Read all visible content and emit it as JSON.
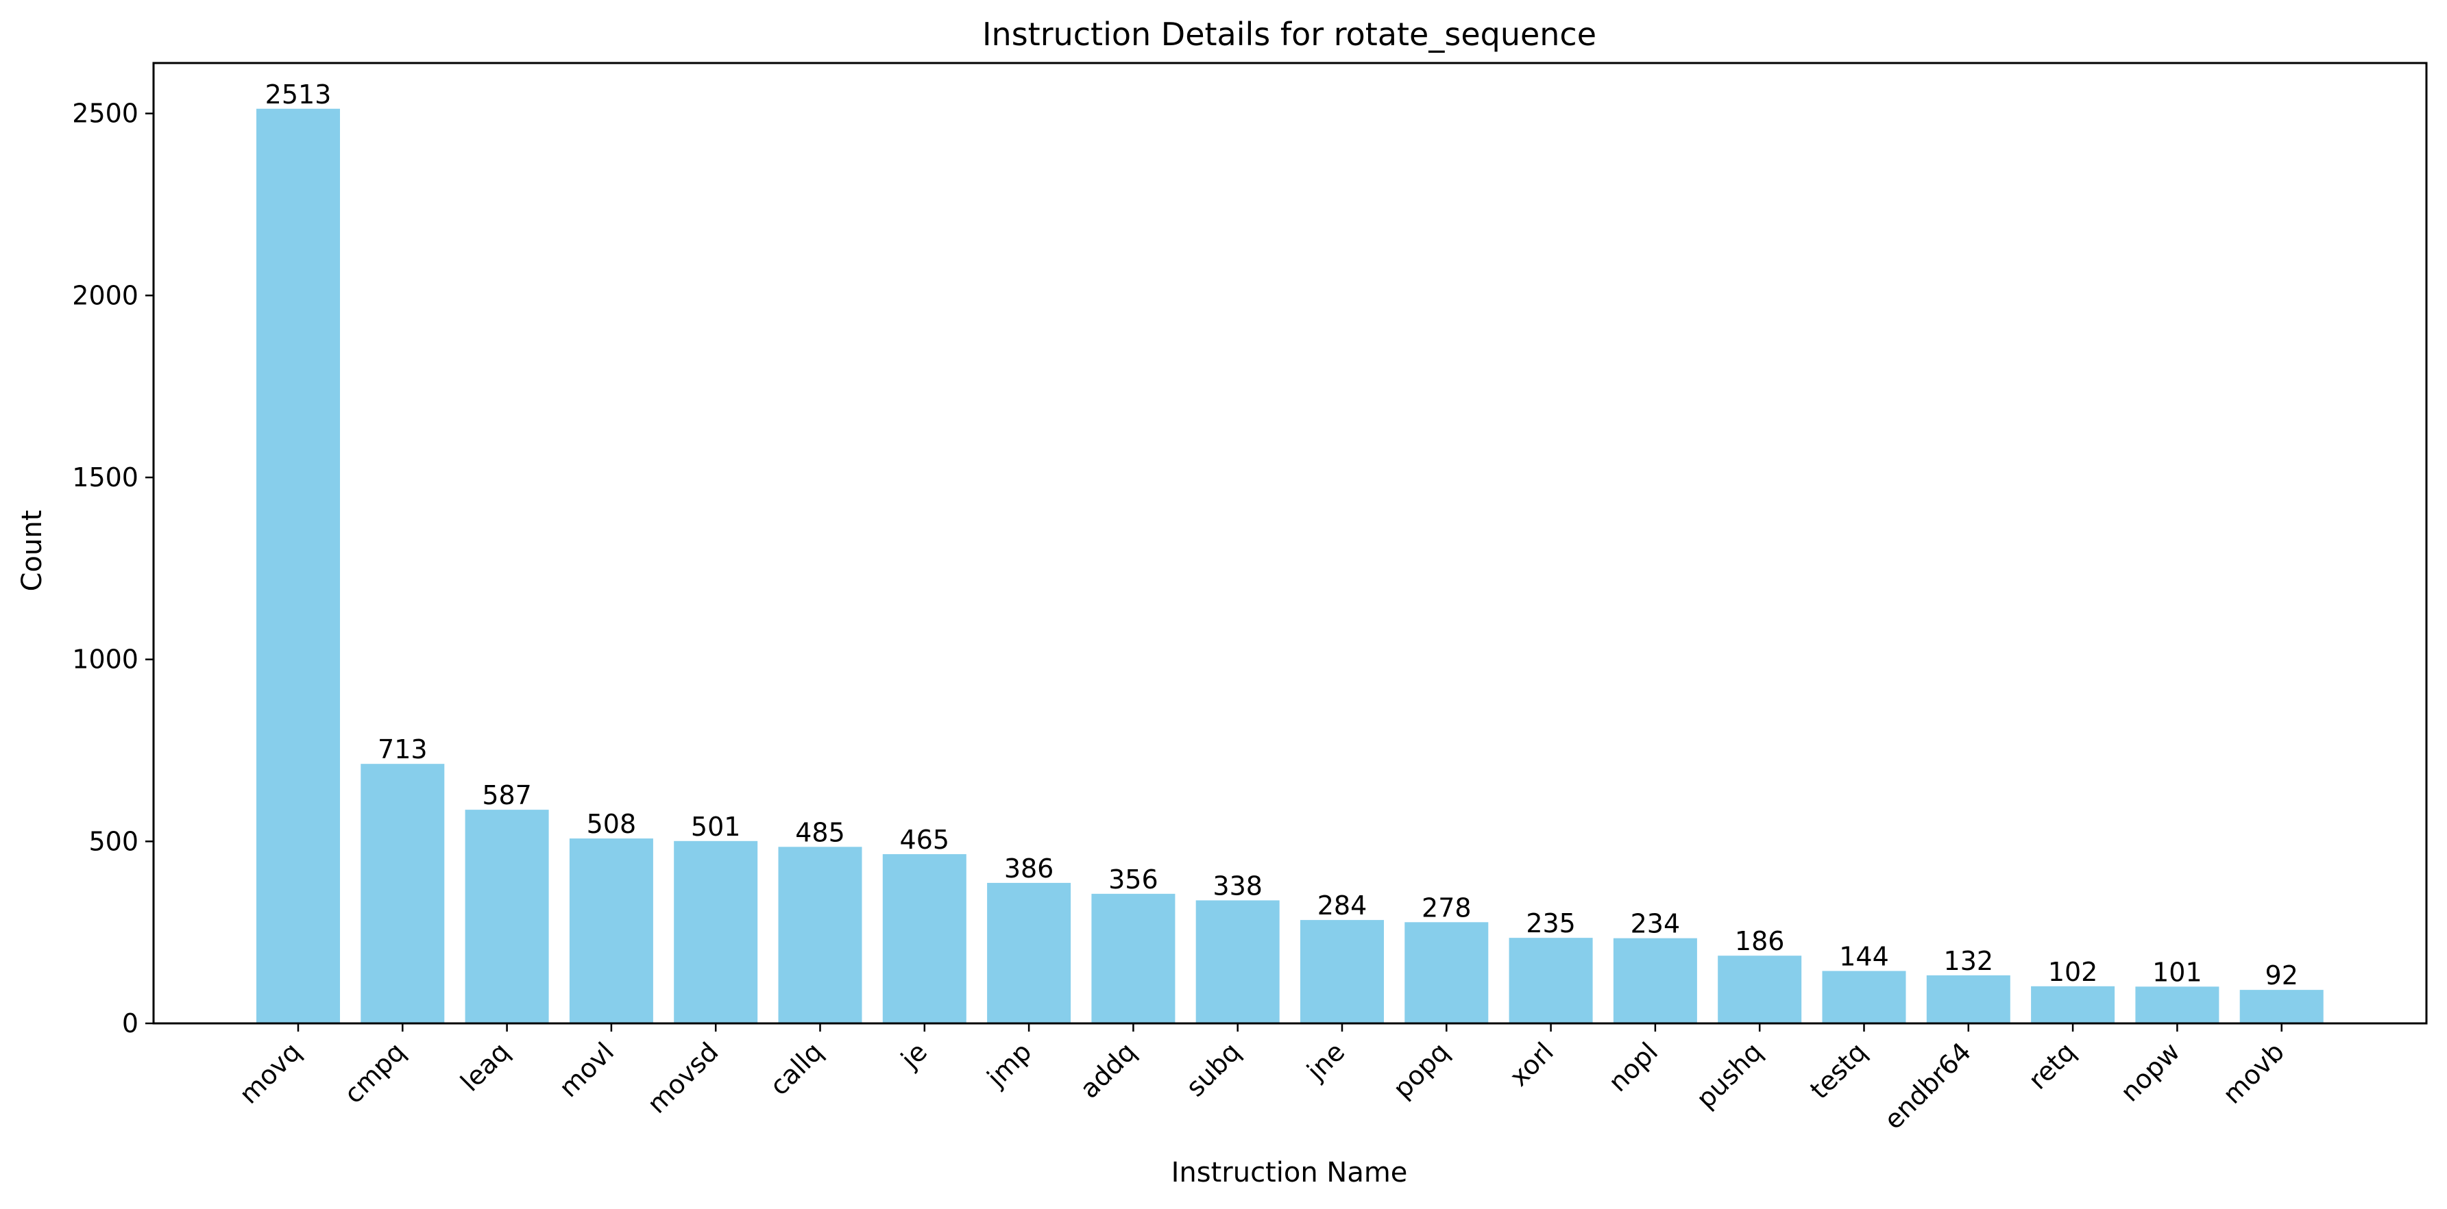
{
  "chart_data": {
    "type": "bar",
    "title": "Instruction Details for rotate_sequence",
    "xlabel": "Instruction Name",
    "ylabel": "Count",
    "categories": [
      "movq",
      "cmpq",
      "leaq",
      "movl",
      "movsd",
      "callq",
      "je",
      "jmp",
      "addq",
      "subq",
      "jne",
      "popq",
      "xorl",
      "nopl",
      "pushq",
      "testq",
      "endbr64",
      "retq",
      "nopw",
      "movb"
    ],
    "values": [
      2513,
      713,
      587,
      508,
      501,
      485,
      465,
      386,
      356,
      338,
      284,
      278,
      235,
      234,
      186,
      144,
      132,
      102,
      101,
      92
    ],
    "data_labels": [
      "2513",
      "713",
      "587",
      "508",
      "501",
      "485",
      "465",
      "386",
      "356",
      "338",
      "284",
      "278",
      "235",
      "234",
      "186",
      "144",
      "132",
      "102",
      "101",
      "92"
    ],
    "ylim": [
      0,
      2638.65
    ],
    "yticks": [
      0,
      500,
      1000,
      1500,
      2000,
      2500
    ],
    "ytick_labels": [
      "0",
      "500",
      "1000",
      "1500",
      "2000",
      "2500"
    ],
    "grid": false,
    "bar_color": "#87CEEB"
  }
}
